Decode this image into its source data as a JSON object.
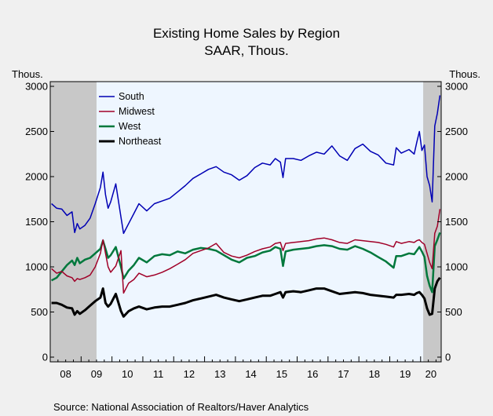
{
  "chart_data": {
    "type": "line",
    "title": "Existing Home Sales by Region",
    "subtitle": "SAAR, Thous.",
    "ylabel_left": "Thous.",
    "ylabel_right": "Thous.",
    "ylim": [
      0,
      3000
    ],
    "y_ticks": [
      0,
      500,
      1000,
      1500,
      2000,
      2500,
      3000
    ],
    "x_range": [
      "2008-01",
      "2020-08"
    ],
    "x_tick_labels": [
      "08",
      "09",
      "10",
      "11",
      "12",
      "13",
      "14",
      "15",
      "16",
      "17",
      "18",
      "19",
      "20"
    ],
    "recessions": [
      {
        "start": "2008-01",
        "end": "2009-06"
      },
      {
        "start": "2020-02",
        "end": "2020-08"
      }
    ],
    "legend_position": "top-left",
    "grid": false,
    "source": "Source:  National Association of Realtors/Haver Analytics",
    "series": [
      {
        "name": "South",
        "color": "#0000b4",
        "points": [
          [
            "2008-01",
            1700
          ],
          [
            "2008-03",
            1650
          ],
          [
            "2008-05",
            1640
          ],
          [
            "2008-07",
            1570
          ],
          [
            "2008-09",
            1610
          ],
          [
            "2008-10",
            1380
          ],
          [
            "2008-11",
            1480
          ],
          [
            "2008-12",
            1420
          ],
          [
            "2009-02",
            1460
          ],
          [
            "2009-04",
            1540
          ],
          [
            "2009-06",
            1700
          ],
          [
            "2009-08",
            1880
          ],
          [
            "2009-09",
            2050
          ],
          [
            "2009-10",
            1800
          ],
          [
            "2009-11",
            1650
          ],
          [
            "2009-12",
            1720
          ],
          [
            "2010-02",
            1920
          ],
          [
            "2010-04",
            1550
          ],
          [
            "2010-05",
            1370
          ],
          [
            "2010-07",
            1480
          ],
          [
            "2010-09",
            1590
          ],
          [
            "2010-11",
            1700
          ],
          [
            "2011-02",
            1620
          ],
          [
            "2011-05",
            1700
          ],
          [
            "2011-08",
            1730
          ],
          [
            "2011-11",
            1760
          ],
          [
            "2012-02",
            1830
          ],
          [
            "2012-05",
            1900
          ],
          [
            "2012-08",
            1980
          ],
          [
            "2012-11",
            2030
          ],
          [
            "2013-02",
            2080
          ],
          [
            "2013-05",
            2110
          ],
          [
            "2013-08",
            2050
          ],
          [
            "2013-11",
            2020
          ],
          [
            "2014-02",
            1960
          ],
          [
            "2014-05",
            2010
          ],
          [
            "2014-08",
            2100
          ],
          [
            "2014-11",
            2150
          ],
          [
            "2015-02",
            2130
          ],
          [
            "2015-04",
            2200
          ],
          [
            "2015-06",
            2160
          ],
          [
            "2015-07",
            1990
          ],
          [
            "2015-08",
            2200
          ],
          [
            "2015-11",
            2200
          ],
          [
            "2016-02",
            2180
          ],
          [
            "2016-05",
            2230
          ],
          [
            "2016-08",
            2270
          ],
          [
            "2016-11",
            2250
          ],
          [
            "2017-02",
            2340
          ],
          [
            "2017-05",
            2230
          ],
          [
            "2017-08",
            2180
          ],
          [
            "2017-11",
            2310
          ],
          [
            "2018-02",
            2360
          ],
          [
            "2018-05",
            2280
          ],
          [
            "2018-08",
            2240
          ],
          [
            "2018-11",
            2150
          ],
          [
            "2019-02",
            2130
          ],
          [
            "2019-03",
            2320
          ],
          [
            "2019-05",
            2260
          ],
          [
            "2019-08",
            2300
          ],
          [
            "2019-10",
            2250
          ],
          [
            "2019-11",
            2380
          ],
          [
            "2019-12",
            2500
          ],
          [
            "2020-01",
            2290
          ],
          [
            "2020-02",
            2350
          ],
          [
            "2020-03",
            2000
          ],
          [
            "2020-04",
            1900
          ],
          [
            "2020-05",
            1720
          ],
          [
            "2020-06",
            2560
          ],
          [
            "2020-07",
            2700
          ],
          [
            "2020-08",
            2900
          ]
        ]
      },
      {
        "name": "Midwest",
        "color": "#a00028",
        "points": [
          [
            "2008-01",
            980
          ],
          [
            "2008-03",
            930
          ],
          [
            "2008-05",
            950
          ],
          [
            "2008-07",
            900
          ],
          [
            "2008-09",
            880
          ],
          [
            "2008-10",
            840
          ],
          [
            "2008-11",
            870
          ],
          [
            "2008-12",
            860
          ],
          [
            "2009-02",
            880
          ],
          [
            "2009-04",
            910
          ],
          [
            "2009-06",
            1000
          ],
          [
            "2009-08",
            1150
          ],
          [
            "2009-09",
            1300
          ],
          [
            "2009-10",
            1150
          ],
          [
            "2009-11",
            1000
          ],
          [
            "2009-12",
            940
          ],
          [
            "2010-02",
            1010
          ],
          [
            "2010-04",
            1180
          ],
          [
            "2010-05",
            710
          ],
          [
            "2010-07",
            820
          ],
          [
            "2010-09",
            860
          ],
          [
            "2010-11",
            930
          ],
          [
            "2011-02",
            890
          ],
          [
            "2011-05",
            910
          ],
          [
            "2011-08",
            940
          ],
          [
            "2011-11",
            980
          ],
          [
            "2012-02",
            1030
          ],
          [
            "2012-05",
            1080
          ],
          [
            "2012-08",
            1150
          ],
          [
            "2012-11",
            1180
          ],
          [
            "2013-02",
            1210
          ],
          [
            "2013-05",
            1260
          ],
          [
            "2013-08",
            1160
          ],
          [
            "2013-11",
            1120
          ],
          [
            "2014-02",
            1100
          ],
          [
            "2014-05",
            1130
          ],
          [
            "2014-08",
            1170
          ],
          [
            "2014-11",
            1200
          ],
          [
            "2015-02",
            1220
          ],
          [
            "2015-04",
            1260
          ],
          [
            "2015-06",
            1270
          ],
          [
            "2015-07",
            1180
          ],
          [
            "2015-08",
            1260
          ],
          [
            "2015-11",
            1270
          ],
          [
            "2016-02",
            1280
          ],
          [
            "2016-05",
            1290
          ],
          [
            "2016-08",
            1310
          ],
          [
            "2016-11",
            1320
          ],
          [
            "2017-02",
            1300
          ],
          [
            "2017-05",
            1270
          ],
          [
            "2017-08",
            1260
          ],
          [
            "2017-11",
            1300
          ],
          [
            "2018-02",
            1290
          ],
          [
            "2018-05",
            1280
          ],
          [
            "2018-08",
            1270
          ],
          [
            "2018-11",
            1250
          ],
          [
            "2019-02",
            1220
          ],
          [
            "2019-03",
            1280
          ],
          [
            "2019-05",
            1260
          ],
          [
            "2019-08",
            1280
          ],
          [
            "2019-10",
            1270
          ],
          [
            "2019-11",
            1290
          ],
          [
            "2019-12",
            1300
          ],
          [
            "2020-01",
            1270
          ],
          [
            "2020-02",
            1250
          ],
          [
            "2020-03",
            1150
          ],
          [
            "2020-04",
            1050
          ],
          [
            "2020-05",
            980
          ],
          [
            "2020-06",
            1370
          ],
          [
            "2020-07",
            1450
          ],
          [
            "2020-08",
            1640
          ]
        ]
      },
      {
        "name": "West",
        "color": "#00783c",
        "points": [
          [
            "2008-01",
            850
          ],
          [
            "2008-03",
            880
          ],
          [
            "2008-05",
            950
          ],
          [
            "2008-07",
            1020
          ],
          [
            "2008-09",
            1070
          ],
          [
            "2008-10",
            1020
          ],
          [
            "2008-11",
            1100
          ],
          [
            "2008-12",
            1040
          ],
          [
            "2009-02",
            1080
          ],
          [
            "2009-04",
            1100
          ],
          [
            "2009-06",
            1150
          ],
          [
            "2009-08",
            1200
          ],
          [
            "2009-09",
            1290
          ],
          [
            "2009-10",
            1200
          ],
          [
            "2009-11",
            1100
          ],
          [
            "2009-12",
            1130
          ],
          [
            "2010-02",
            1220
          ],
          [
            "2010-04",
            1000
          ],
          [
            "2010-05",
            870
          ],
          [
            "2010-07",
            960
          ],
          [
            "2010-09",
            1020
          ],
          [
            "2010-11",
            1100
          ],
          [
            "2011-02",
            1050
          ],
          [
            "2011-05",
            1120
          ],
          [
            "2011-08",
            1140
          ],
          [
            "2011-11",
            1130
          ],
          [
            "2012-02",
            1170
          ],
          [
            "2012-05",
            1150
          ],
          [
            "2012-08",
            1190
          ],
          [
            "2012-11",
            1210
          ],
          [
            "2013-02",
            1200
          ],
          [
            "2013-05",
            1180
          ],
          [
            "2013-08",
            1130
          ],
          [
            "2013-11",
            1080
          ],
          [
            "2014-02",
            1050
          ],
          [
            "2014-05",
            1100
          ],
          [
            "2014-08",
            1120
          ],
          [
            "2014-11",
            1160
          ],
          [
            "2015-02",
            1180
          ],
          [
            "2015-04",
            1220
          ],
          [
            "2015-06",
            1200
          ],
          [
            "2015-07",
            1010
          ],
          [
            "2015-08",
            1170
          ],
          [
            "2015-11",
            1190
          ],
          [
            "2016-02",
            1200
          ],
          [
            "2016-05",
            1210
          ],
          [
            "2016-08",
            1230
          ],
          [
            "2016-11",
            1240
          ],
          [
            "2017-02",
            1230
          ],
          [
            "2017-05",
            1200
          ],
          [
            "2017-08",
            1190
          ],
          [
            "2017-11",
            1230
          ],
          [
            "2018-02",
            1200
          ],
          [
            "2018-05",
            1160
          ],
          [
            "2018-08",
            1110
          ],
          [
            "2018-11",
            1060
          ],
          [
            "2019-02",
            990
          ],
          [
            "2019-03",
            1120
          ],
          [
            "2019-05",
            1120
          ],
          [
            "2019-08",
            1150
          ],
          [
            "2019-10",
            1140
          ],
          [
            "2019-11",
            1180
          ],
          [
            "2019-12",
            1220
          ],
          [
            "2020-01",
            1170
          ],
          [
            "2020-02",
            1110
          ],
          [
            "2020-03",
            900
          ],
          [
            "2020-04",
            790
          ],
          [
            "2020-05",
            720
          ],
          [
            "2020-06",
            1230
          ],
          [
            "2020-07",
            1300
          ],
          [
            "2020-08",
            1380
          ]
        ]
      },
      {
        "name": "Northeast",
        "color": "#000000",
        "points": [
          [
            "2008-01",
            600
          ],
          [
            "2008-03",
            600
          ],
          [
            "2008-05",
            580
          ],
          [
            "2008-07",
            550
          ],
          [
            "2008-09",
            540
          ],
          [
            "2008-10",
            470
          ],
          [
            "2008-11",
            510
          ],
          [
            "2008-12",
            480
          ],
          [
            "2009-02",
            520
          ],
          [
            "2009-04",
            570
          ],
          [
            "2009-06",
            620
          ],
          [
            "2009-08",
            660
          ],
          [
            "2009-09",
            760
          ],
          [
            "2009-10",
            600
          ],
          [
            "2009-11",
            560
          ],
          [
            "2009-12",
            590
          ],
          [
            "2010-02",
            700
          ],
          [
            "2010-04",
            510
          ],
          [
            "2010-05",
            450
          ],
          [
            "2010-07",
            510
          ],
          [
            "2010-09",
            540
          ],
          [
            "2010-11",
            560
          ],
          [
            "2011-02",
            530
          ],
          [
            "2011-05",
            550
          ],
          [
            "2011-08",
            560
          ],
          [
            "2011-11",
            560
          ],
          [
            "2012-02",
            580
          ],
          [
            "2012-05",
            600
          ],
          [
            "2012-08",
            630
          ],
          [
            "2012-11",
            650
          ],
          [
            "2013-02",
            670
          ],
          [
            "2013-05",
            690
          ],
          [
            "2013-08",
            660
          ],
          [
            "2013-11",
            640
          ],
          [
            "2014-02",
            620
          ],
          [
            "2014-05",
            640
          ],
          [
            "2014-08",
            660
          ],
          [
            "2014-11",
            680
          ],
          [
            "2015-02",
            680
          ],
          [
            "2015-04",
            700
          ],
          [
            "2015-06",
            720
          ],
          [
            "2015-07",
            660
          ],
          [
            "2015-08",
            720
          ],
          [
            "2015-11",
            730
          ],
          [
            "2016-02",
            720
          ],
          [
            "2016-05",
            740
          ],
          [
            "2016-08",
            760
          ],
          [
            "2016-11",
            760
          ],
          [
            "2017-02",
            730
          ],
          [
            "2017-05",
            700
          ],
          [
            "2017-08",
            710
          ],
          [
            "2017-11",
            720
          ],
          [
            "2018-02",
            710
          ],
          [
            "2018-05",
            690
          ],
          [
            "2018-08",
            680
          ],
          [
            "2018-11",
            670
          ],
          [
            "2019-02",
            660
          ],
          [
            "2019-03",
            690
          ],
          [
            "2019-05",
            690
          ],
          [
            "2019-08",
            700
          ],
          [
            "2019-10",
            690
          ],
          [
            "2019-11",
            710
          ],
          [
            "2019-12",
            720
          ],
          [
            "2020-01",
            690
          ],
          [
            "2020-02",
            650
          ],
          [
            "2020-03",
            540
          ],
          [
            "2020-04",
            470
          ],
          [
            "2020-05",
            480
          ],
          [
            "2020-06",
            760
          ],
          [
            "2020-07",
            840
          ],
          [
            "2020-08",
            880
          ]
        ]
      }
    ]
  }
}
